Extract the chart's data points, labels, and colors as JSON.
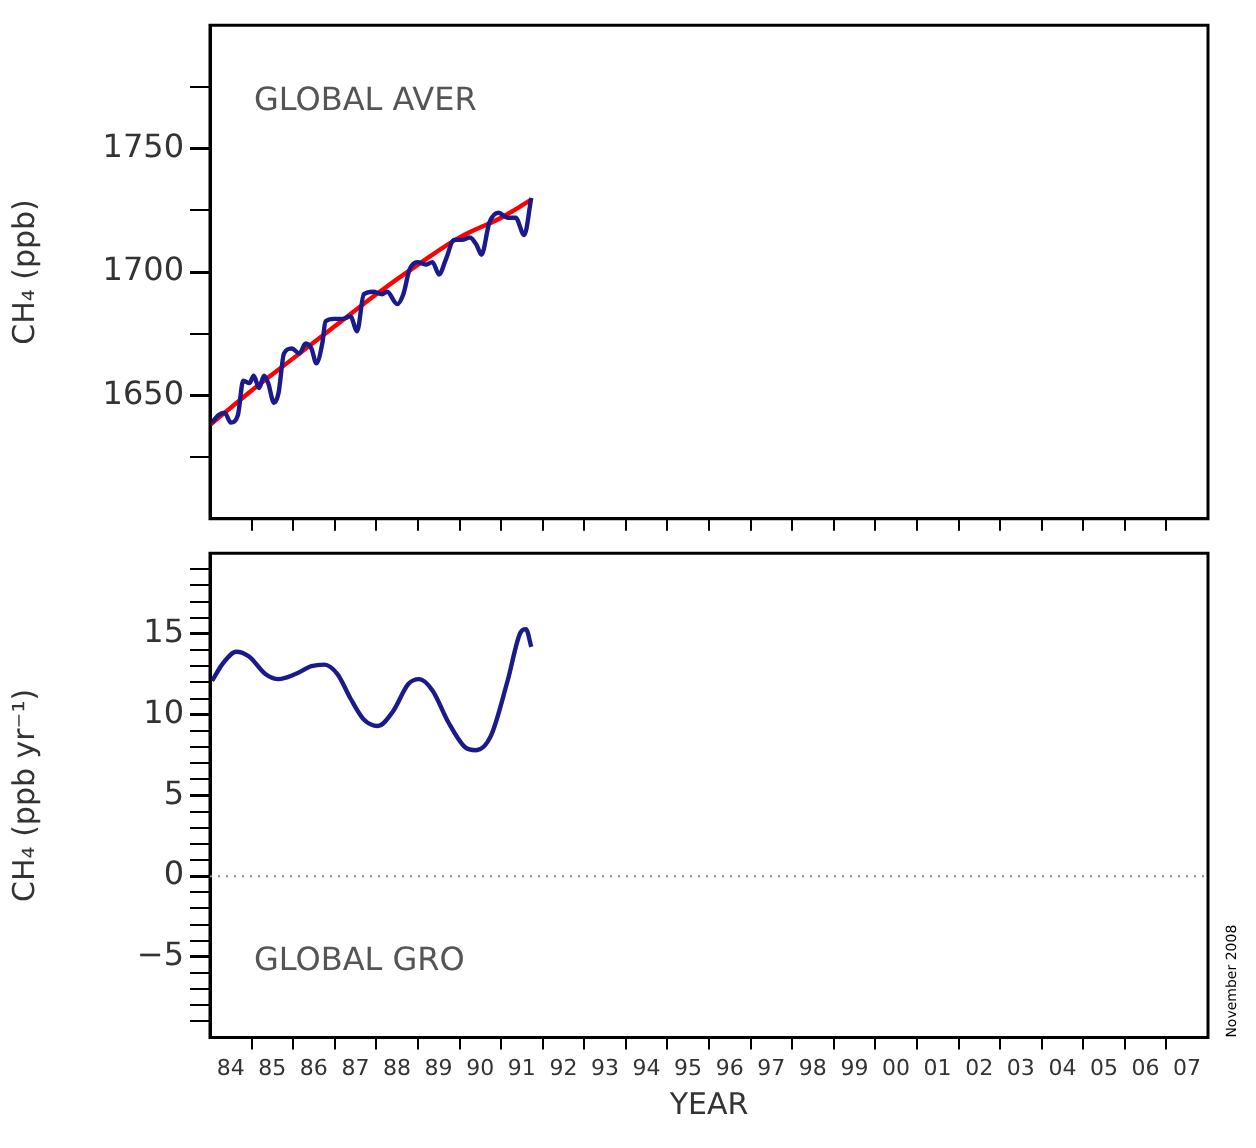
{
  "chart_data": [
    {
      "type": "line",
      "ylabel": "CH₄ (ppb)",
      "annotations": [
        "GLOBAL AVER"
      ],
      "xlim": [
        "1984",
        "2008"
      ],
      "ylim": [
        1600,
        1800
      ],
      "yticks": [
        {
          "value": 1625,
          "label": null
        },
        1650,
        {
          "value": 1675,
          "label": null
        },
        1700,
        {
          "value": 1725,
          "label": null
        },
        1750,
        {
          "value": 1775,
          "label": null
        }
      ],
      "xticks": [
        {
          "value": "1985",
          "label": null
        },
        {
          "value": "1986",
          "label": null
        },
        {
          "value": "1987",
          "label": null
        },
        {
          "value": "1988",
          "label": null
        },
        {
          "value": "1989",
          "label": null
        },
        {
          "value": "1990",
          "label": null
        },
        {
          "value": "1991",
          "label": null
        },
        {
          "value": "1992",
          "label": null
        },
        {
          "value": "1993",
          "label": null
        },
        {
          "value": "1994",
          "label": null
        },
        {
          "value": "1995",
          "label": null
        },
        {
          "value": "1996",
          "label": null
        },
        {
          "value": "1997",
          "label": null
        },
        {
          "value": "1998",
          "label": null
        },
        {
          "value": "1999",
          "label": null
        },
        {
          "value": "2000",
          "label": null
        },
        {
          "value": "2001",
          "label": null
        },
        {
          "value": "2002",
          "label": null
        },
        {
          "value": "2003",
          "label": null
        },
        {
          "value": "2004",
          "label": null
        },
        {
          "value": "2005",
          "label": null
        },
        {
          "value": "2006",
          "label": null
        },
        {
          "value": "2007",
          "label": null
        }
      ],
      "tick_labels": "y",
      "legend": false,
      "grid": false,
      "marker": "none",
      "series": [
        {
          "color": "#1a1a8c",
          "x": [
            "1984-01-19",
            "1984-03-14",
            "1984-05-08",
            "1984-07-02",
            "1984-09-02",
            "1984-10-19",
            "1984-12-13",
            "1985-01-19",
            "1985-03-07",
            "1985-04-20",
            "1985-05-26",
            "1985-07-16",
            "1985-08-25",
            "1985-10-12",
            "1985-12-20",
            "1986-02-24",
            "1986-04-20",
            "1986-06-10",
            "1986-07-23",
            "1986-09-13",
            "1986-10-12",
            "1986-12-24",
            "1987-03-10",
            "1987-05-19",
            "1987-07-16",
            "1987-09-13",
            "1987-12-05",
            "1988-02-20",
            "1988-04-05",
            "1988-07-02",
            "1988-08-25",
            "1988-10-19",
            "1988-12-27",
            "1989-03-10",
            "1989-05-08",
            "1989-07-05",
            "1989-09-02",
            "1989-11-14",
            "1990-01-22",
            "1990-04-01",
            "1990-05-30",
            "1990-07-12",
            "1990-09-20",
            "1990-12-09",
            "1991-02-27",
            "1991-05-08",
            "1991-07-23",
            "1991-09-23"
          ],
          "values": [
            1639,
            1642,
            1643,
            1639,
            1642,
            1656,
            1655,
            1658,
            1653,
            1658,
            1655,
            1647,
            1651,
            1667,
            1669,
            1667,
            1671,
            1669,
            1663,
            1671,
            1680,
            1681,
            1681,
            1682,
            1676,
            1691,
            1692,
            1691,
            1692,
            1687,
            1691,
            1701,
            1704,
            1703,
            1704,
            1699,
            1705,
            1713,
            1713,
            1714,
            1711,
            1707,
            1720,
            1724,
            1722,
            1722,
            1715,
            1730
          ]
        },
        {
          "color": "#ff0000",
          "x": [
            "1984-01-01",
            "1985-01-01",
            "1986-01-01",
            "1987-01-01",
            "1988-01-01",
            "1989-01-01",
            "1990-01-01",
            "1991-01-01",
            "1991-09-13"
          ],
          "values": [
            1638,
            1652,
            1665,
            1678,
            1691,
            1703,
            1714,
            1722,
            1729
          ]
        }
      ]
    },
    {
      "type": "line",
      "ylabel": "CH₄ (ppb yr⁻¹)",
      "xlabel": "YEAR",
      "annotations": [
        "GLOBAL GRO",
        "November 2008"
      ],
      "xlim": [
        "1984",
        "2008"
      ],
      "ylim": [
        -10,
        20
      ],
      "yticks": [
        {
          "value": -9,
          "label": null
        },
        {
          "value": -8,
          "label": null
        },
        {
          "value": -7,
          "label": null
        },
        {
          "value": -6,
          "label": null
        },
        {
          "value": -5,
          "label": "−5"
        },
        {
          "value": -4,
          "label": null
        },
        {
          "value": -3,
          "label": null
        },
        {
          "value": -2,
          "label": null
        },
        {
          "value": -1,
          "label": null
        },
        0,
        {
          "value": 1,
          "label": null
        },
        {
          "value": 2,
          "label": null
        },
        {
          "value": 3,
          "label": null
        },
        {
          "value": 4,
          "label": null
        },
        5,
        {
          "value": 6,
          "label": null
        },
        {
          "value": 7,
          "label": null
        },
        {
          "value": 8,
          "label": null
        },
        {
          "value": 9,
          "label": null
        },
        10,
        {
          "value": 11,
          "label": null
        },
        {
          "value": 12,
          "label": null
        },
        {
          "value": 13,
          "label": null
        },
        {
          "value": 14,
          "label": null
        },
        15,
        {
          "value": 16,
          "label": null
        },
        {
          "value": 17,
          "label": null
        },
        {
          "value": 18,
          "label": null
        },
        {
          "value": 19,
          "label": null
        }
      ],
      "xticks": [
        {
          "value": "1984-07",
          "label": "84"
        },
        {
          "value": "1985",
          "label": null
        },
        {
          "value": "1985-07",
          "label": "85"
        },
        {
          "value": "1986",
          "label": null
        },
        {
          "value": "1986-07",
          "label": "86"
        },
        {
          "value": "1987",
          "label": null
        },
        {
          "value": "1987-07",
          "label": "87"
        },
        {
          "value": "1988",
          "label": null
        },
        {
          "value": "1988-07",
          "label": "88"
        },
        {
          "value": "1989",
          "label": null
        },
        {
          "value": "1989-07",
          "label": "89"
        },
        {
          "value": "1990",
          "label": null
        },
        {
          "value": "1990-07",
          "label": "90"
        },
        {
          "value": "1991",
          "label": null
        },
        {
          "value": "1991-07",
          "label": "91"
        },
        {
          "value": "1992",
          "label": null
        },
        {
          "value": "1992-07",
          "label": "92"
        },
        {
          "value": "1993",
          "label": null
        },
        {
          "value": "1993-07",
          "label": "93"
        },
        {
          "value": "1994",
          "label": null
        },
        {
          "value": "1994-07",
          "label": "94"
        },
        {
          "value": "1995",
          "label": null
        },
        {
          "value": "1995-07",
          "label": "95"
        },
        {
          "value": "1996",
          "label": null
        },
        {
          "value": "1996-07",
          "label": "96"
        },
        {
          "value": "1997",
          "label": null
        },
        {
          "value": "1997-07",
          "label": "97"
        },
        {
          "value": "1998",
          "label": null
        },
        {
          "value": "1998-07",
          "label": "98"
        },
        {
          "value": "1999",
          "label": null
        },
        {
          "value": "1999-07",
          "label": "99"
        },
        {
          "value": "2000",
          "label": null
        },
        {
          "value": "2000-07",
          "label": "00"
        },
        {
          "value": "2001",
          "label": null
        },
        {
          "value": "2001-07",
          "label": "01"
        },
        {
          "value": "2002",
          "label": null
        },
        {
          "value": "2002-07",
          "label": "02"
        },
        {
          "value": "2003",
          "label": null
        },
        {
          "value": "2003-07",
          "label": "03"
        },
        {
          "value": "2004",
          "label": null
        },
        {
          "value": "2004-07",
          "label": "04"
        },
        {
          "value": "2005",
          "label": null
        },
        {
          "value": "2005-07",
          "label": "05"
        },
        {
          "value": "2006",
          "label": null
        },
        {
          "value": "2006-07",
          "label": "06"
        },
        {
          "value": "2007",
          "label": null
        },
        {
          "value": "2007-07",
          "label": "07"
        }
      ],
      "legend": false,
      "grid": false,
      "marker": "none",
      "ref_lines": [
        {
          "axis": "y",
          "value": 0,
          "color": "#888888",
          "line_style": "dotted"
        }
      ],
      "series": [
        {
          "color": "#1a1a8c",
          "x": [
            "1984-01-19",
            "1984-04-26",
            "1984-08-18",
            "1984-12-09",
            "1985-05-04",
            "1985-08-25",
            "1986-01-15",
            "1986-06-10",
            "1986-10-01",
            "1987-01-26",
            "1987-05-19",
            "1987-09-13",
            "1988-01-15",
            "1988-05-26",
            "1988-10-08",
            "1989-01-11",
            "1989-05-08",
            "1989-09-27",
            "1990-02-16",
            "1990-05-26",
            "1990-10-04",
            "1991-02-27",
            "1991-06-21",
            "1991-08-07",
            "1991-09-23"
          ],
          "values": [
            12.1,
            13.2,
            13.9,
            13.6,
            12.5,
            12.2,
            12.5,
            13.0,
            13.1,
            12.5,
            11.0,
            9.7,
            9.3,
            10.2,
            11.9,
            12.2,
            11.5,
            9.5,
            8.0,
            7.8,
            8.7,
            12.1,
            15.1,
            15.3,
            14.2
          ]
        }
      ]
    }
  ]
}
